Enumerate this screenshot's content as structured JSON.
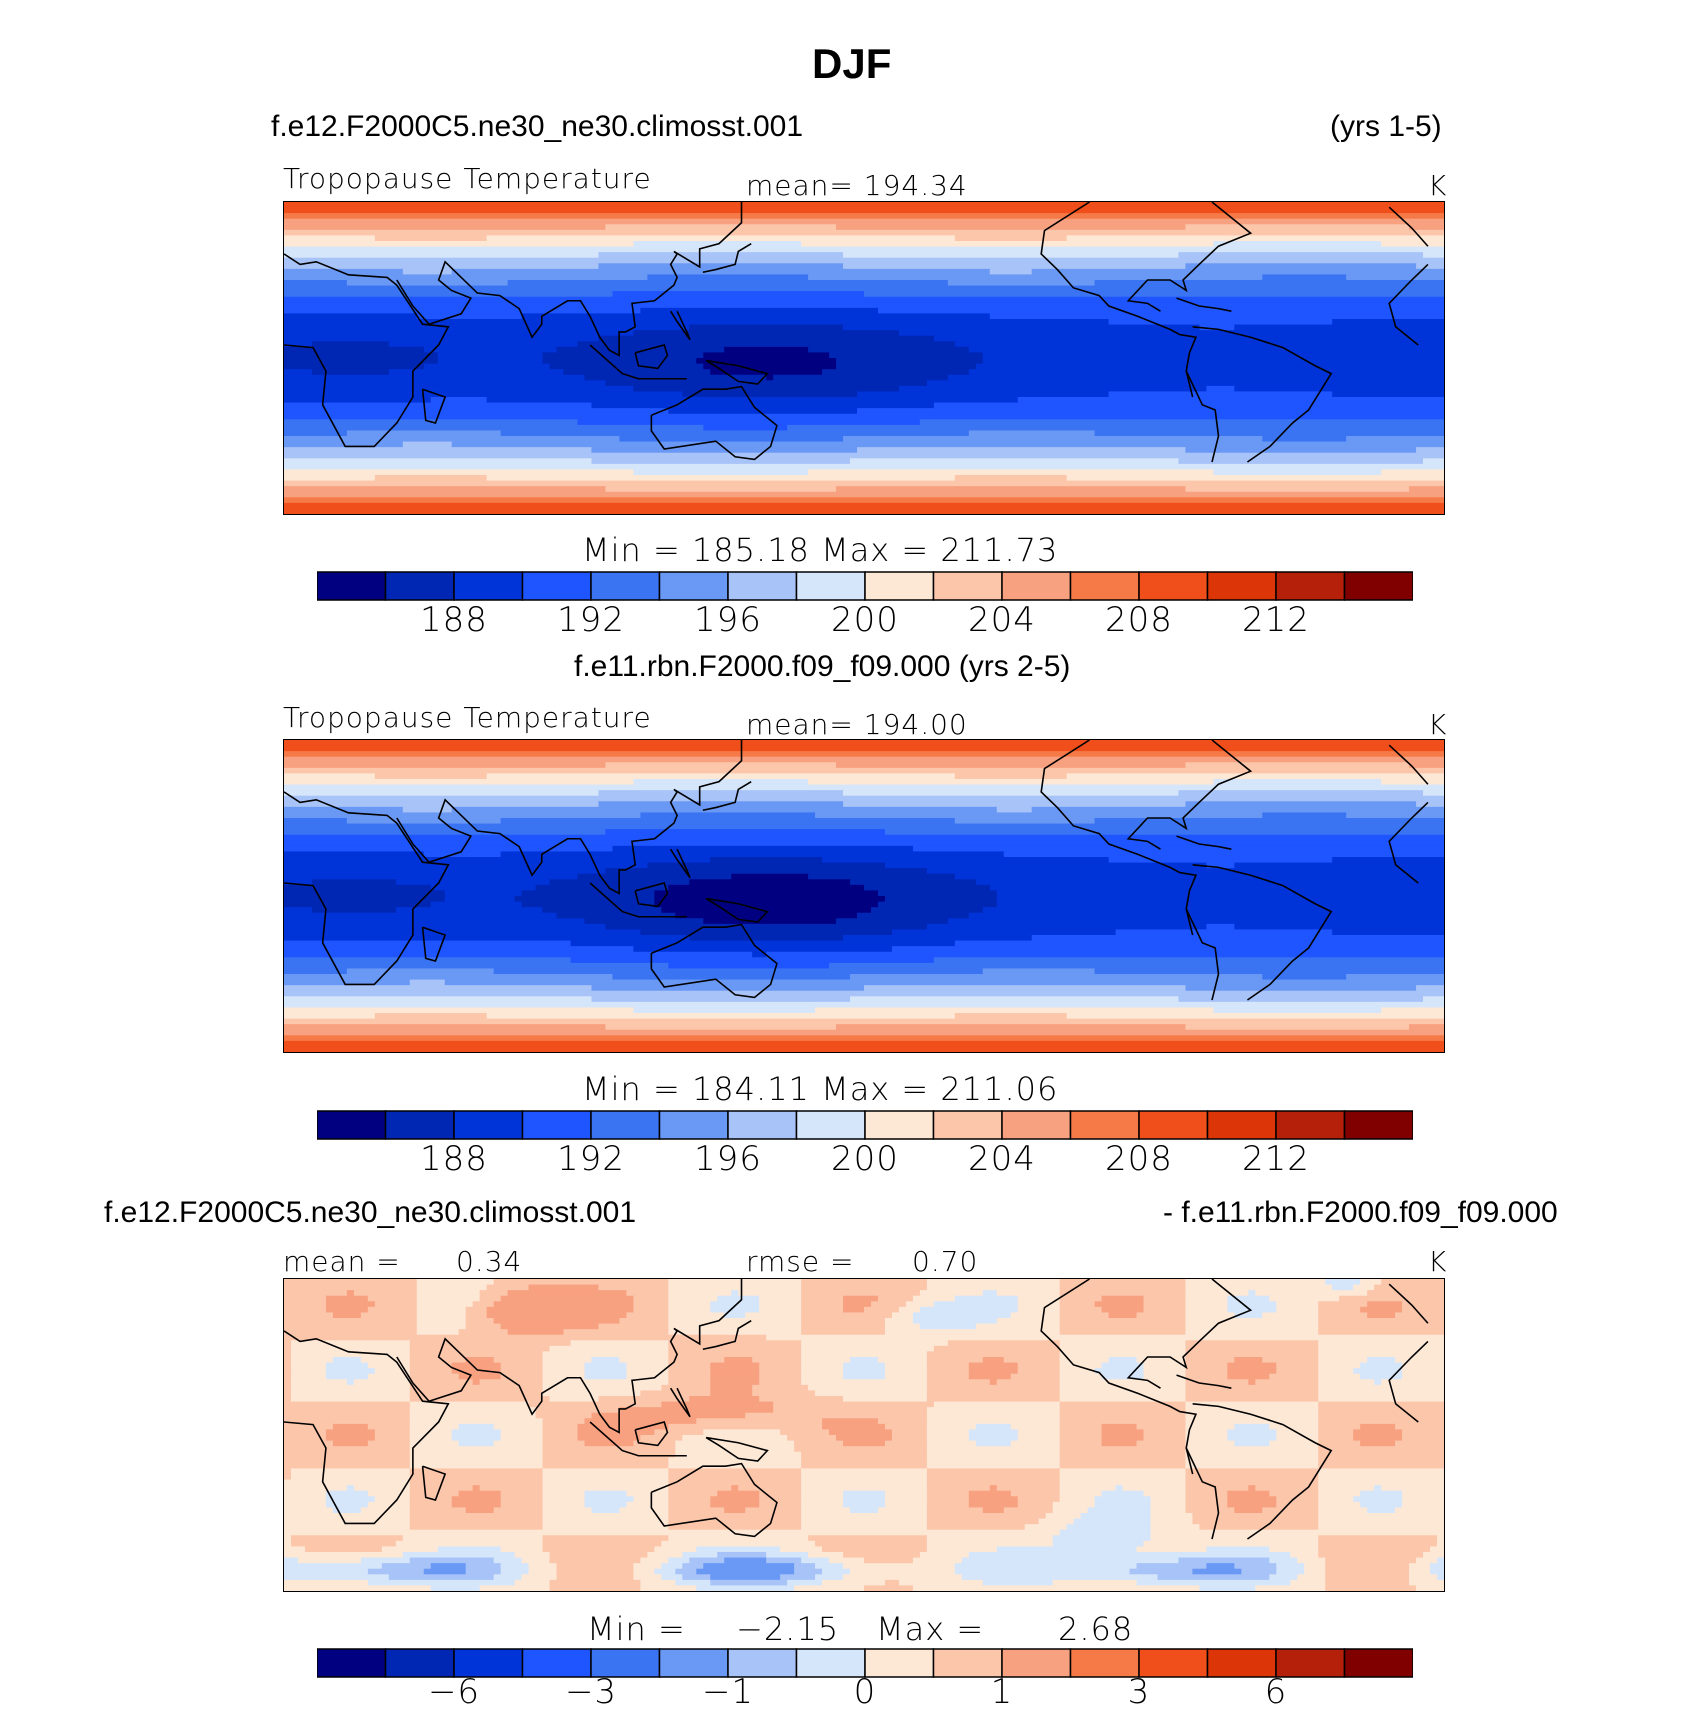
{
  "figure_title": "DJF",
  "colors": [
    "#000080",
    "#0026b4",
    "#0033d8",
    "#1f55ff",
    "#3b74f2",
    "#6a98f5",
    "#a7c3f7",
    "#d5e6fa",
    "#fde8d6",
    "#fbc6aa",
    "#f8a180",
    "#f57a48",
    "#f04f1c",
    "#dc3508",
    "#b5200a",
    "#800000"
  ],
  "chart_data": [
    {
      "type": "heatmap",
      "case": "f.e12.F2000C5.ne30_ne30.climosst.001",
      "years": "(yrs 1-5)",
      "variable": "Tropopause Temperature",
      "mean_label": "mean= 194.34",
      "mean": 194.34,
      "units": "K",
      "minmax_label": "Min = 185.18 Max = 211.73",
      "min": 185.18,
      "max": 211.73,
      "contour_levels": [
        186,
        188,
        190,
        192,
        194,
        196,
        198,
        200,
        202,
        204,
        206,
        208,
        210,
        212,
        214
      ],
      "colorbar_ticks": [
        "188",
        "192",
        "196",
        "200",
        "204",
        "208",
        "212"
      ],
      "warm_pool_center_lon": 150,
      "warm_pool_min": 185.5
    },
    {
      "type": "heatmap",
      "case": "f.e11.rbn.F2000.f09_f09.000 (yrs 2-5)",
      "variable": "Tropopause Temperature",
      "mean_label": "mean= 194.00",
      "mean": 194.0,
      "units": "K",
      "minmax_label": "Min = 184.11 Max = 211.06",
      "min": 184.11,
      "max": 211.06,
      "contour_levels": [
        186,
        188,
        190,
        192,
        194,
        196,
        198,
        200,
        202,
        204,
        206,
        208,
        210,
        212,
        214
      ],
      "colorbar_ticks": [
        "188",
        "192",
        "196",
        "200",
        "204",
        "208",
        "212"
      ],
      "warm_pool_center_lon": 150,
      "warm_pool_min": 184.5
    },
    {
      "type": "heatmap",
      "case_left": "f.e12.F2000C5.ne30_ne30.climosst.001",
      "case_right": "- f.e11.rbn.F2000.f09_f09.000",
      "mean_text": "mean =",
      "mean_value": "0.34",
      "rmse_text": "rmse =",
      "rmse_value": "0.70",
      "units": "K",
      "min_text": "Min =",
      "min_value": "−2.15",
      "max_text": "Max =",
      "max_value": "2.68",
      "contour_levels": [
        -8,
        -6,
        -4,
        -3,
        -2,
        -1,
        -0.5,
        0,
        0.5,
        1,
        2,
        3,
        4,
        6,
        8
      ],
      "colorbar_ticks": [
        "−6",
        "−3",
        "−1",
        "0",
        "1",
        "3",
        "6"
      ]
    }
  ]
}
